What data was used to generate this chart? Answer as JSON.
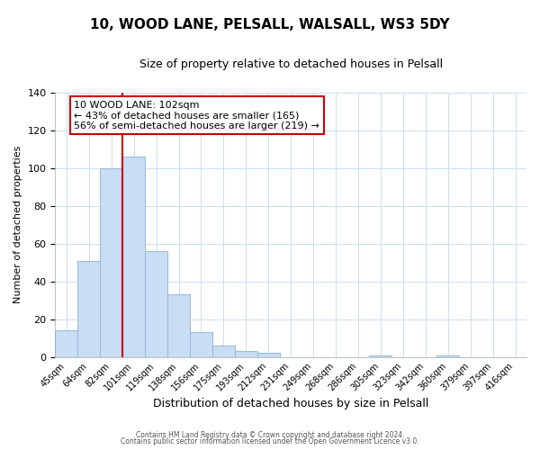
{
  "title": "10, WOOD LANE, PELSALL, WALSALL, WS3 5DY",
  "subtitle": "Size of property relative to detached houses in Pelsall",
  "xlabel": "Distribution of detached houses by size in Pelsall",
  "ylabel": "Number of detached properties",
  "bin_labels": [
    "45sqm",
    "64sqm",
    "82sqm",
    "101sqm",
    "119sqm",
    "138sqm",
    "156sqm",
    "175sqm",
    "193sqm",
    "212sqm",
    "231sqm",
    "249sqm",
    "268sqm",
    "286sqm",
    "305sqm",
    "323sqm",
    "342sqm",
    "360sqm",
    "379sqm",
    "397sqm",
    "416sqm"
  ],
  "bar_heights": [
    14,
    51,
    100,
    106,
    56,
    33,
    13,
    6,
    3,
    2,
    0,
    0,
    0,
    0,
    1,
    0,
    0,
    1,
    0,
    0,
    0
  ],
  "bar_color": "#c9ddf5",
  "bar_edge_color": "#9bbdda",
  "vline_x": 3.0,
  "vline_color": "#cc0000",
  "annotation_title": "10 WOOD LANE: 102sqm",
  "annotation_line1": "← 43% of detached houses are smaller (165)",
  "annotation_line2": "56% of semi-detached houses are larger (219) →",
  "annotation_box_color": "#ffffff",
  "annotation_box_edge_color": "#cc0000",
  "ylim": [
    0,
    140
  ],
  "yticks": [
    0,
    20,
    40,
    60,
    80,
    100,
    120,
    140
  ],
  "footer1": "Contains HM Land Registry data © Crown copyright and database right 2024.",
  "footer2": "Contains public sector information licensed under the Open Government Licence v3.0.",
  "bg_color": "#ffffff",
  "grid_color": "#ccddf0",
  "title_fontsize": 11,
  "subtitle_fontsize": 9
}
